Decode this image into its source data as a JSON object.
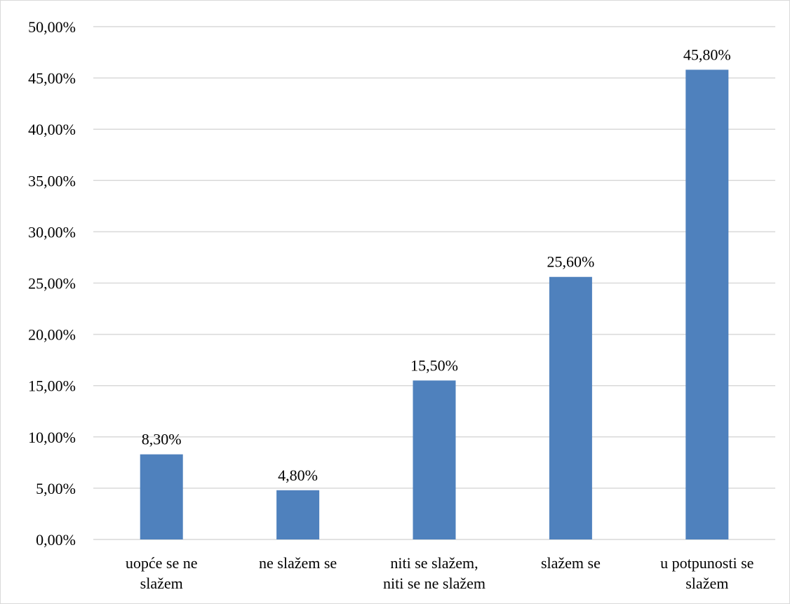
{
  "chart_data": {
    "type": "bar",
    "categories": [
      [
        "uopće se ne",
        "slažem"
      ],
      [
        "ne slažem se"
      ],
      [
        "niti se slažem,",
        "niti se ne slažem"
      ],
      [
        "slažem se"
      ],
      [
        "u potpunosti se",
        "slažem"
      ]
    ],
    "values": [
      8.3,
      4.8,
      15.5,
      25.6,
      45.8
    ],
    "data_labels": [
      "8,30%",
      "4,80%",
      "15,50%",
      "25,60%",
      "45,80%"
    ],
    "y_ticks": [
      "0,00%",
      "5,00%",
      "10,00%",
      "15,00%",
      "20,00%",
      "25,00%",
      "30,00%",
      "35,00%",
      "40,00%",
      "45,00%",
      "50,00%"
    ],
    "ylim": [
      0,
      50
    ],
    "grid": true,
    "legend": "none",
    "bar_color": "#4f81bd",
    "grid_color": "#d9d9d9"
  }
}
